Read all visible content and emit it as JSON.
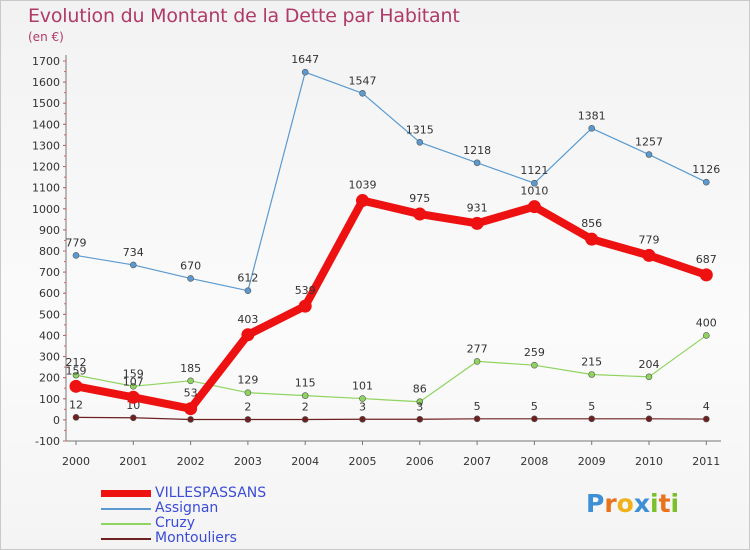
{
  "title": "Evolution du Montant de la Dette par Habitant",
  "subtitle": "(en €)",
  "chart_data": {
    "type": "line",
    "x": [
      "2000",
      "2001",
      "2002",
      "2003",
      "2004",
      "2005",
      "2006",
      "2007",
      "2008",
      "2009",
      "2010",
      "2011"
    ],
    "ylim": [
      -100,
      1700
    ],
    "yticks": [
      -100,
      0,
      100,
      200,
      300,
      400,
      500,
      600,
      700,
      800,
      900,
      1000,
      1100,
      1200,
      1300,
      1400,
      1500,
      1600,
      1700
    ],
    "grid": false,
    "legend_position": "bottom-left",
    "series": [
      {
        "name": "Assignan",
        "color": "#5a9ad0",
        "values": [
          779,
          734,
          670,
          612,
          1647,
          1547,
          1315,
          1218,
          1121,
          1381,
          1257,
          1126
        ],
        "labels": [
          "779",
          "734",
          "670",
          "612",
          "1647",
          "1547",
          "1315",
          "1218",
          "1121",
          "1381",
          "1257",
          "1126"
        ]
      },
      {
        "name": "Cruzy",
        "color": "#8fd45e",
        "values": [
          212,
          159,
          185,
          129,
          115,
          101,
          86,
          277,
          259,
          215,
          204,
          400
        ],
        "labels": [
          "212",
          "159",
          "185",
          "129",
          "115",
          "101",
          "86",
          "277",
          "259",
          "215",
          "204",
          "400"
        ]
      },
      {
        "name": "Montouliers",
        "color": "#6e2020",
        "values": [
          12,
          10,
          2,
          2,
          2,
          3,
          3,
          5,
          5,
          5,
          5,
          4
        ],
        "labels": [
          "12",
          "10",
          "",
          "2",
          "2",
          "3",
          "3",
          "5",
          "5",
          "5",
          "5",
          "4"
        ]
      },
      {
        "name": "VILLESPASSANS",
        "color": "#ee1111",
        "values": [
          159,
          107,
          53,
          403,
          539,
          1039,
          975,
          931,
          1010,
          856,
          779,
          687
        ],
        "labels": [
          "159",
          "107",
          "53",
          "403",
          "539",
          "1039",
          "975",
          "931",
          "1010",
          "856",
          "779",
          "687"
        ]
      }
    ]
  },
  "legend": [
    {
      "name": "VILLESPASSANS",
      "color": "#ee1111"
    },
    {
      "name": "Assignan",
      "color": "#5a9ad0"
    },
    {
      "name": "Cruzy",
      "color": "#8fd45e"
    },
    {
      "name": "Montouliers",
      "color": "#6e2020"
    }
  ],
  "logo": {
    "text": "Proxiti",
    "letters": [
      {
        "ch": "P",
        "color": "#3d8fd6"
      },
      {
        "ch": "r",
        "color": "#e8731c"
      },
      {
        "ch": "o",
        "color": "#f0b21c"
      },
      {
        "ch": "x",
        "color": "#3d8fd6"
      },
      {
        "ch": "i",
        "color": "#7bbf2a"
      },
      {
        "ch": "t",
        "color": "#e8731c"
      },
      {
        "ch": "i",
        "color": "#7bbf2a"
      }
    ]
  }
}
